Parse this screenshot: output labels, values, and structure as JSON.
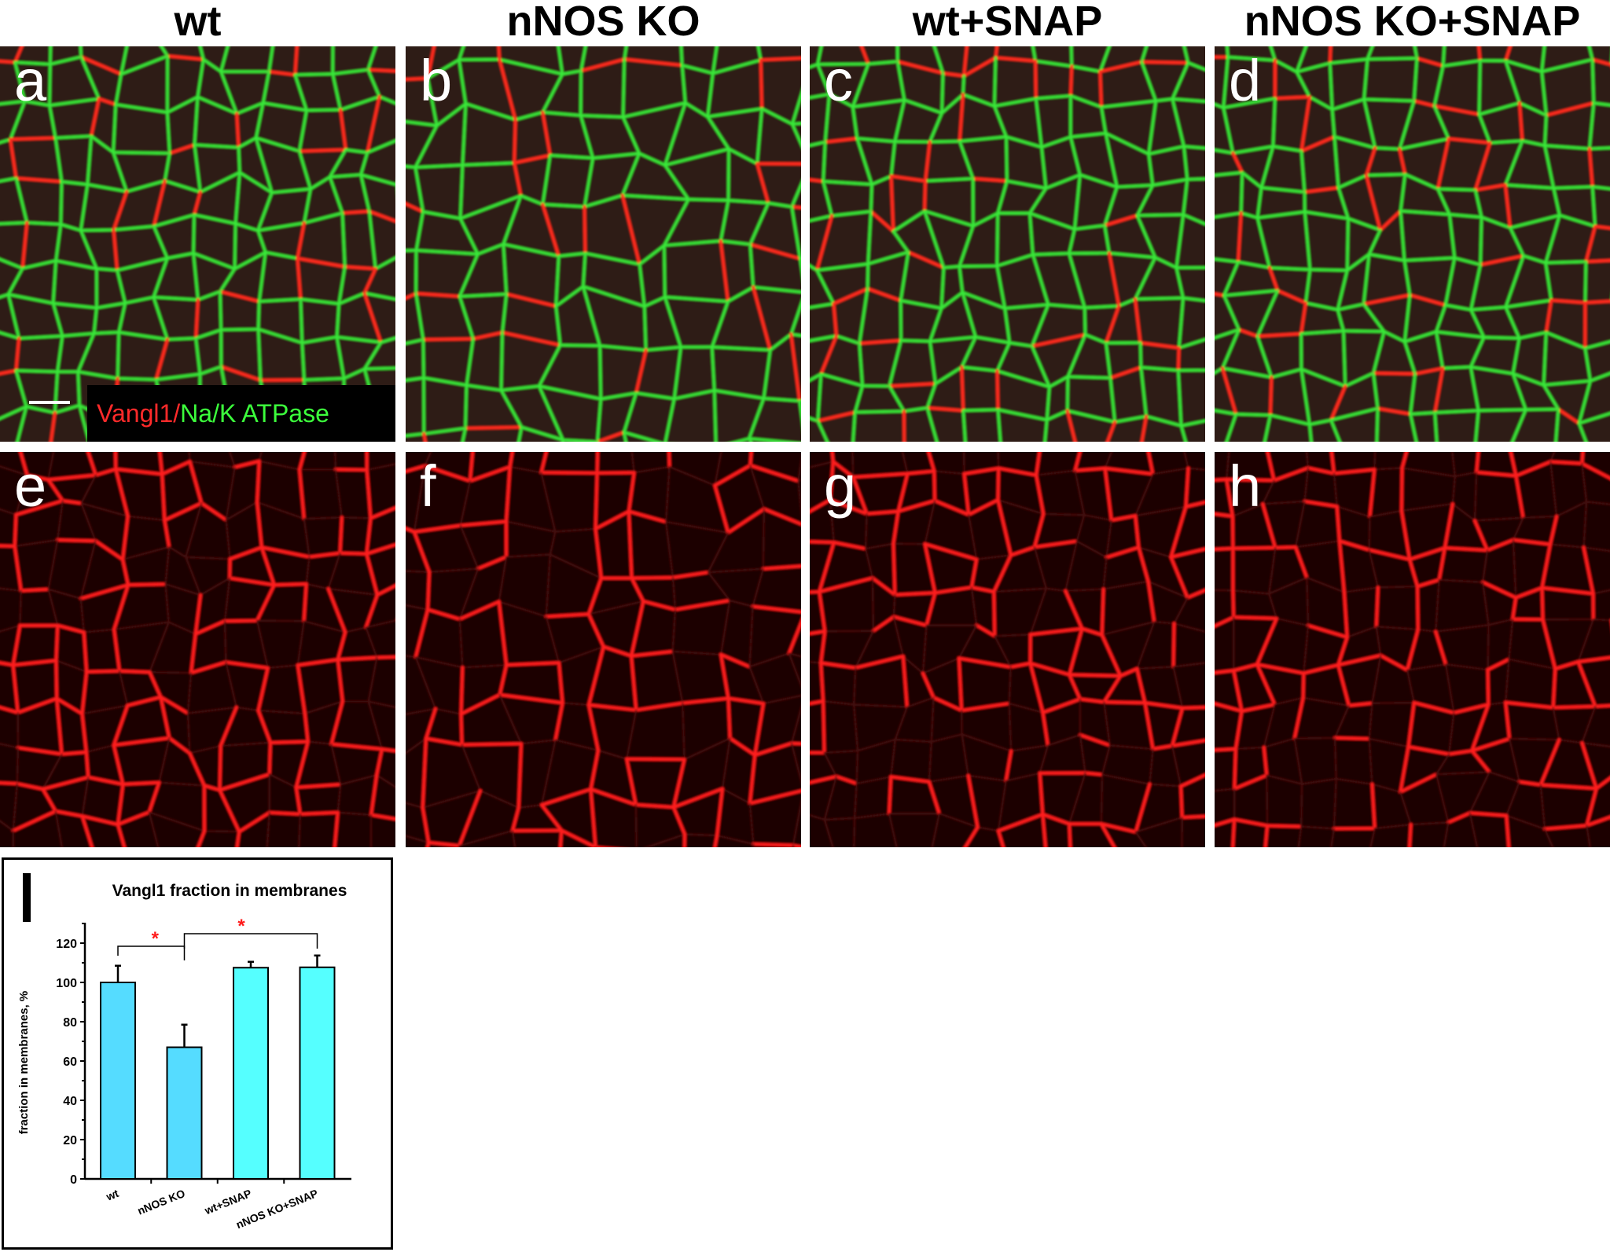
{
  "columns": [
    "wt",
    "nNOS KO",
    "wt+SNAP",
    "nNOS KO+SNAP"
  ],
  "panels_top": [
    "a",
    "b",
    "c",
    "d"
  ],
  "panels_bottom": [
    "e",
    "f",
    "g",
    "h"
  ],
  "legend": {
    "red_label": "Vangl1",
    "separator": "/",
    "green_label": "Na/K ATPase",
    "red_color": "#ff2a2a",
    "green_color": "#3cff3c"
  },
  "chart_panel_label": "i",
  "chart_data": {
    "type": "bar",
    "title": "Vangl1 fraction in membranes",
    "xlabel": "",
    "ylabel": "fraction in membranes, %",
    "categories": [
      "wt",
      "nNOS KO",
      "wt+SNAP",
      "nNOS KO+SNAP"
    ],
    "values": [
      100,
      67,
      107.5,
      107.7
    ],
    "errors": [
      8.5,
      11.5,
      3,
      6
    ],
    "colors": [
      "#55dcff",
      "#55dcff",
      "#55ffff",
      "#55ffff"
    ],
    "ylim": [
      0,
      130
    ],
    "yticks": [
      0,
      20,
      40,
      60,
      80,
      100,
      120
    ],
    "grid": false,
    "significance": [
      {
        "from": "wt",
        "to": "nNOS KO",
        "label": "*"
      },
      {
        "from": "nNOS KO",
        "to": "nNOS KO+SNAP",
        "label": "*"
      }
    ]
  }
}
